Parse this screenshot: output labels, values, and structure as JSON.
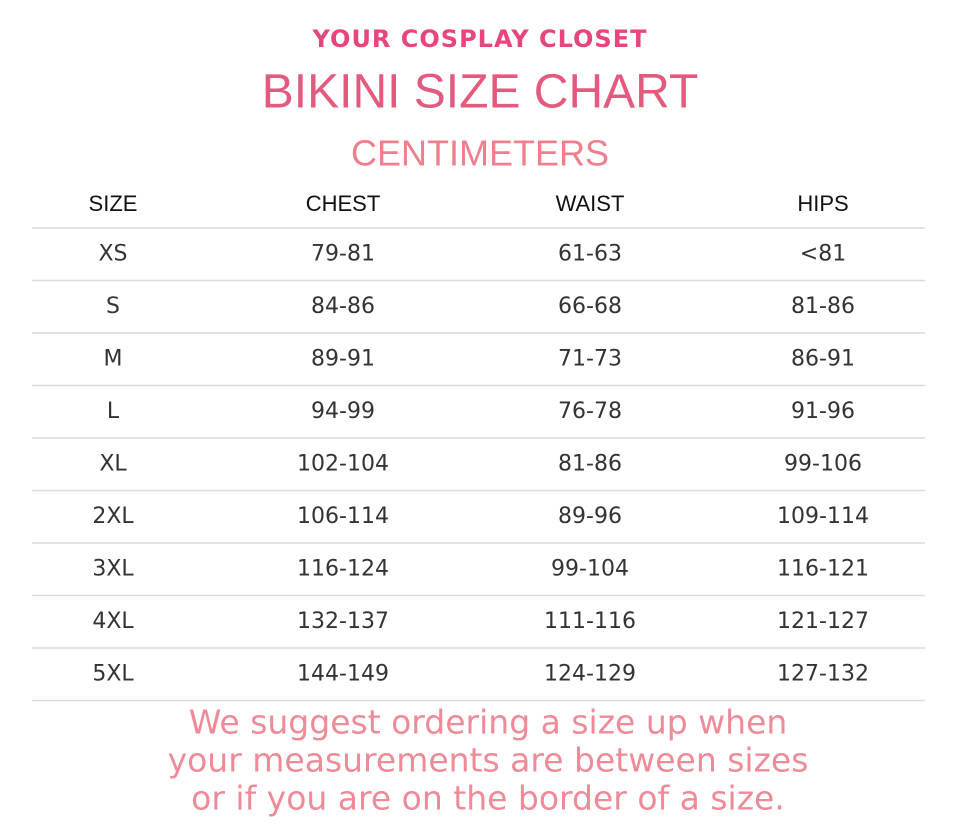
{
  "brand": "YOUR COSPLAY CLOSET",
  "title": "BIKINI SIZE CHART",
  "subtitle": "CENTIMETERS",
  "table": {
    "headers": [
      "SIZE",
      "CHEST",
      "WAIST",
      "HIPS"
    ],
    "rows": [
      [
        "XS",
        "79-81",
        "61-63",
        "<81"
      ],
      [
        "S",
        "84-86",
        "66-68",
        "81-86"
      ],
      [
        "M",
        "89-91",
        "71-73",
        "86-91"
      ],
      [
        "L",
        "94-99",
        "76-78",
        "91-96"
      ],
      [
        "XL",
        "102-104",
        "81-86",
        "99-106"
      ],
      [
        "2XL",
        "106-114",
        "89-96",
        "109-114"
      ],
      [
        "3XL",
        "116-124",
        "99-104",
        "116-121"
      ],
      [
        "4XL",
        "132-137",
        "111-116",
        "121-127"
      ],
      [
        "5XL",
        "144-149",
        "124-129",
        "127-132"
      ]
    ]
  },
  "footnote": [
    "We suggest ordering a size up when",
    "your measurements are between sizes",
    "or if you are on the border of a size."
  ]
}
